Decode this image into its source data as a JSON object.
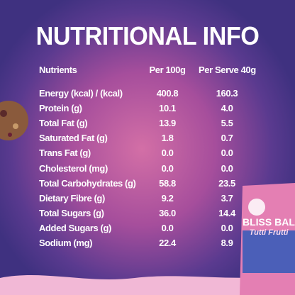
{
  "title": "NUTRITIONAL INFO",
  "table": {
    "header": [
      "Nutrients",
      "Per 100g",
      "Per Serve 40g"
    ],
    "rows": [
      [
        "Energy (kcal) / (kcal)",
        "400.8",
        "160.3"
      ],
      [
        "Protein (g)",
        "10.1",
        "4.0"
      ],
      [
        "Total Fat (g)",
        "13.9",
        "5.5"
      ],
      [
        "Saturated Fat (g)",
        "1.8",
        "0.7"
      ],
      [
        "Trans Fat (g)",
        "0.0",
        "0.0"
      ],
      [
        "Cholesterol (mg)",
        "0.0",
        "0.0"
      ],
      [
        "Total Carbohydrates (g)",
        "58.8",
        "23.5"
      ],
      [
        "Dietary Fibre (g)",
        "9.2",
        "3.7"
      ],
      [
        "Total Sugars (g)",
        "36.0",
        "14.4"
      ],
      [
        "Added Sugars (g)",
        "0.0",
        "0.0"
      ],
      [
        "Sodium (mg)",
        "22.4",
        "8.9"
      ]
    ]
  },
  "package": {
    "name": "BLISS BALLS",
    "flavour": "Tutti Frutti"
  }
}
